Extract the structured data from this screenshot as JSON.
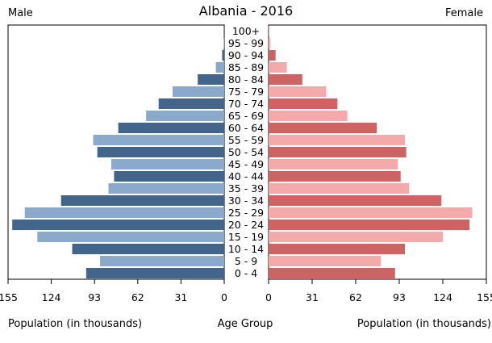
{
  "header": {
    "title": "Albania - 2016",
    "left_label": "Male",
    "right_label": "Female"
  },
  "footer": {
    "left_axis_label": "Population (in thousands)",
    "center_label": "Age Group",
    "right_axis_label": "Population (in thousands)"
  },
  "chart_data": {
    "type": "bar",
    "orientation": "horizontal-population-pyramid",
    "title": "Albania - 2016",
    "xlabel": "Population (in thousands)",
    "ylabel": "Age Group",
    "xlim": [
      0,
      155
    ],
    "ticks": [
      "155",
      "124",
      "93",
      "62",
      "31",
      "0"
    ],
    "right_ticks": [
      "0",
      "31",
      "62",
      "93",
      "124",
      "155"
    ],
    "tick_values": [
      155,
      124,
      93,
      62,
      31,
      0
    ],
    "right_tick_values": [
      0,
      31,
      62,
      93,
      124,
      155
    ],
    "categories": [
      "0 - 4",
      "5 - 9",
      "10 - 14",
      "15 - 19",
      "20 - 24",
      "25 - 29",
      "30 - 34",
      "35 - 39",
      "40 - 44",
      "45 - 49",
      "50 - 54",
      "55 - 59",
      "60 - 64",
      "65 - 69",
      "70 - 74",
      "75 - 79",
      "80 - 84",
      "85 - 89",
      "90 - 94",
      "95 - 99",
      "100+"
    ],
    "series": [
      {
        "name": "Male",
        "dark_color": "#43648b",
        "light_color": "#8aa9cb",
        "values": [
          99,
          89,
          109,
          134,
          152,
          143,
          117,
          83,
          79,
          81,
          91,
          94,
          76,
          56,
          47,
          37,
          19,
          6,
          1.5,
          0.4,
          0.1
        ]
      },
      {
        "name": "Female",
        "dark_color": "#cd6464",
        "light_color": "#f4aaaa",
        "values": [
          90,
          80,
          97,
          124,
          143,
          145,
          123,
          100,
          94,
          92,
          98,
          97,
          77,
          56,
          49,
          41,
          24,
          13,
          5,
          1.3,
          0.3
        ]
      }
    ]
  }
}
